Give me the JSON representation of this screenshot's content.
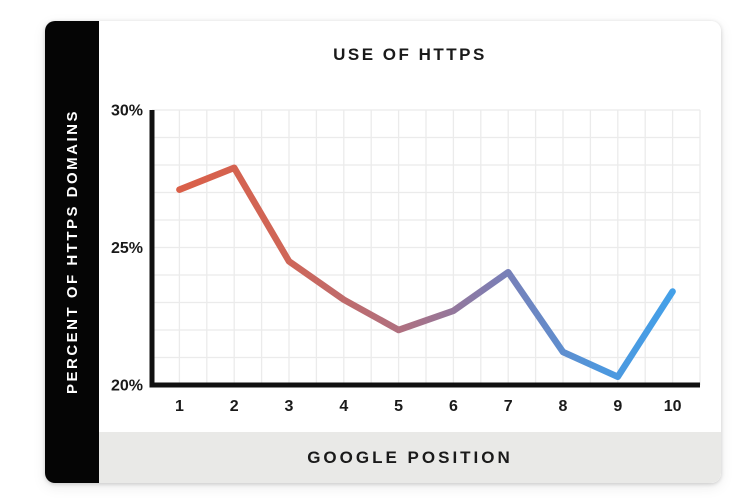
{
  "colors": {
    "sidebar_bg": "#050505",
    "sidebar_text": "#ffffff",
    "footer_bg": "#e9e9e7",
    "card_bg": "#ffffff",
    "axis": "#111111",
    "grid": "#ebebeb",
    "tick_text": "#1a1a1a",
    "line_gradient_start": "#da5f48",
    "line_gradient_end": "#44a0e8"
  },
  "chart_data": {
    "type": "line",
    "title": "USE OF HTTPS",
    "xlabel": "GOOGLE POSITION",
    "ylabel": "PERCENT OF HTTPS DOMAINS",
    "x": [
      1,
      2,
      3,
      4,
      5,
      6,
      7,
      8,
      9,
      10
    ],
    "x_tick_labels": [
      "1",
      "2",
      "3",
      "4",
      "5",
      "6",
      "7",
      "8",
      "9",
      "10"
    ],
    "values": [
      27.1,
      27.9,
      24.5,
      23.1,
      22.0,
      22.7,
      24.1,
      21.2,
      20.3,
      23.4
    ],
    "y_ticks": [
      30,
      25,
      20
    ],
    "y_tick_labels": [
      "30%",
      "25%",
      "20%"
    ],
    "ylim": [
      20,
      30
    ],
    "xlim_positions": [
      0.5,
      10.5
    ],
    "grid": true,
    "x_grid_divisions": 20,
    "y_grid_divisions": 10,
    "legend": false,
    "line_width": 6.5,
    "line_gradient_stops": [
      {
        "offset": 0,
        "color": "#da5f48"
      },
      {
        "offset": 0.22,
        "color": "#cf6658"
      },
      {
        "offset": 0.45,
        "color": "#af7080"
      },
      {
        "offset": 0.65,
        "color": "#7b7eb5"
      },
      {
        "offset": 0.85,
        "color": "#4e97dd"
      },
      {
        "offset": 1,
        "color": "#44a0e8"
      }
    ]
  }
}
